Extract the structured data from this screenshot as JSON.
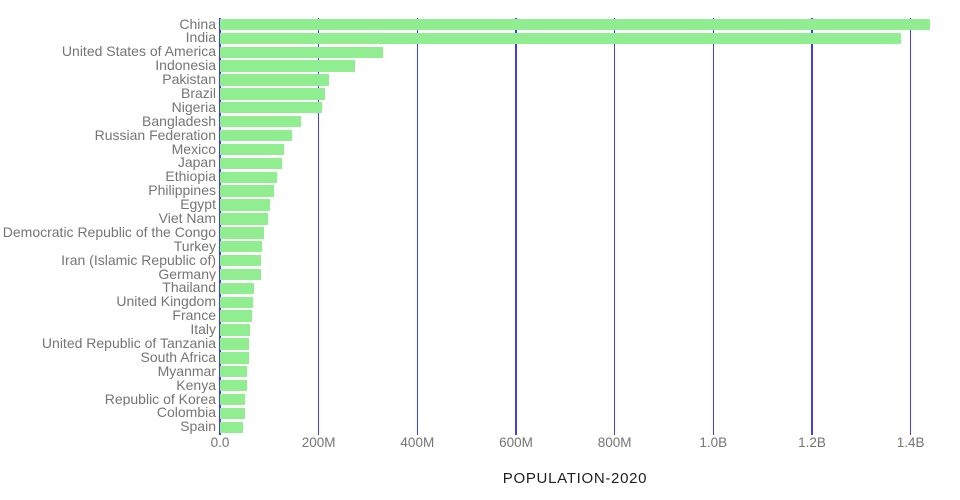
{
  "chart_data": {
    "type": "bar",
    "orientation": "horizontal",
    "title": "",
    "xlabel": "POPULATION-2020",
    "ylabel": "",
    "grid": true,
    "xlim_millions": [
      0,
      1439.3
    ],
    "bar_color": "#90ee90",
    "gridline_color": "#3d3df2",
    "label_color": "#757575",
    "axis_title_color": "#1f1f1f",
    "categories": [
      "China",
      "India",
      "United States of America",
      "Indonesia",
      "Pakistan",
      "Brazil",
      "Nigeria",
      "Bangladesh",
      "Russian Federation",
      "Mexico",
      "Japan",
      "Ethiopia",
      "Philippines",
      "Egypt",
      "Viet Nam",
      "Democratic Republic of the Congo",
      "Turkey",
      "Iran (Islamic Republic of)",
      "Germany",
      "Thailand",
      "United Kingdom",
      "France",
      "Italy",
      "United Republic of Tanzania",
      "South Africa",
      "Myanmar",
      "Kenya",
      "Republic of Korea",
      "Colombia",
      "Spain"
    ],
    "values_millions": [
      1439.3,
      1380.0,
      331.0,
      273.5,
      220.9,
      212.6,
      206.1,
      164.7,
      145.9,
      128.9,
      126.5,
      115.0,
      109.6,
      102.3,
      97.3,
      89.6,
      84.3,
      84.0,
      83.8,
      69.8,
      67.9,
      65.3,
      60.5,
      59.7,
      59.3,
      54.4,
      53.8,
      51.3,
      50.9,
      46.8
    ],
    "x_ticks": [
      {
        "label": "0.0",
        "value_millions": 0
      },
      {
        "label": "200M",
        "value_millions": 200
      },
      {
        "label": "400M",
        "value_millions": 400
      },
      {
        "label": "600M",
        "value_millions": 600
      },
      {
        "label": "800M",
        "value_millions": 800
      },
      {
        "label": "1.0B",
        "value_millions": 1000
      },
      {
        "label": "1.2B",
        "value_millions": 1200
      },
      {
        "label": "1.4B",
        "value_millions": 1400
      }
    ]
  }
}
